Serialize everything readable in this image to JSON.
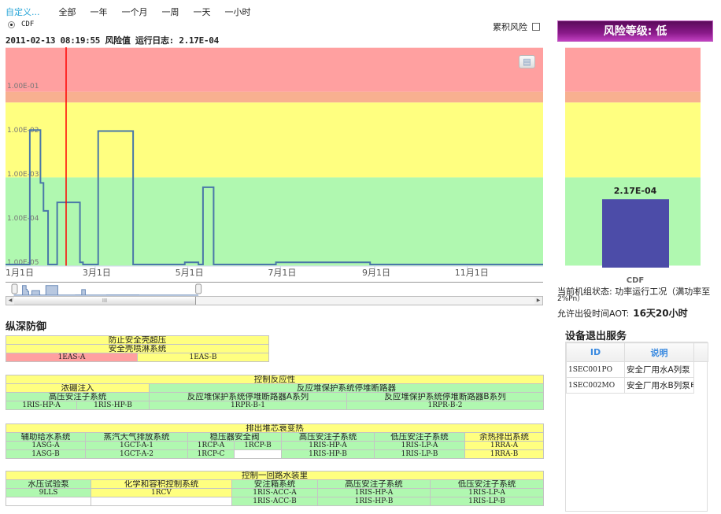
{
  "filters": {
    "custom": "自定义...",
    "ranges": [
      "全部",
      "一年",
      "一个月",
      "一周",
      "一天",
      "一小时"
    ]
  },
  "series_selector": {
    "option": "CDF",
    "selected": true
  },
  "cumulative": {
    "label": "累积风险",
    "checked": false
  },
  "status_line": "2011-02-13 08:19:55 风险值 运行日志: 2.17E-04",
  "print_icon": "printer-icon",
  "colors": {
    "red": "#ffa0a0",
    "salmon": "#f8b090",
    "yellow": "#ffff80",
    "green": "#b0f8b0",
    "line": "#4a78a8",
    "cursor": "#ff0000",
    "bar": "#4c4ca8"
  },
  "chart_data": [
    {
      "type": "line",
      "step": true,
      "yscale": "log",
      "ylim": [
        8e-06,
        0.7
      ],
      "yticks": [
        "1.00E-01",
        "1.00E-02",
        "1.00E-03",
        "1.00E-04",
        "1.00E-05"
      ],
      "ytick_values": [
        0.1,
        0.01,
        0.001,
        0.0001,
        1e-05
      ],
      "xlim": [
        "2011-01-01",
        "2011-12-21"
      ],
      "xticks": [
        "1月1日",
        "3月1日",
        "5月1日",
        "7月1日",
        "9月1日",
        "11月1日"
      ],
      "xtick_dates": [
        "2011-01-01",
        "2011-03-01",
        "2011-05-01",
        "2011-07-01",
        "2011-09-01",
        "2011-11-01"
      ],
      "bands": [
        {
          "level": "red",
          "from": 0.07,
          "to": 0.7
        },
        {
          "level": "salmon",
          "from": 0.04,
          "to": 0.07
        },
        {
          "level": "yellow",
          "from": 0.0008,
          "to": 0.04
        },
        {
          "level": "green",
          "from": 8e-06,
          "to": 0.0008
        }
      ],
      "cursor_date": "2011-02-13",
      "series": [
        {
          "points": [
            [
              "2011-01-01",
              8.5e-06
            ],
            [
              "2011-01-17",
              0.0095
            ],
            [
              "2011-01-24",
              0.0006
            ],
            [
              "2011-01-26",
              0.00014
            ],
            [
              "2011-01-29",
              8.5e-06
            ],
            [
              "2011-02-04",
              0.000217
            ],
            [
              "2011-02-19",
              9.5e-06
            ],
            [
              "2011-02-21",
              8.5e-06
            ],
            [
              "2011-03-03",
              0.009
            ],
            [
              "2011-03-26",
              8.5e-06
            ],
            [
              "2011-04-29",
              9.5e-06
            ],
            [
              "2011-05-08",
              8.5e-06
            ],
            [
              "2011-05-11",
              0.00048
            ],
            [
              "2011-05-18",
              8.5e-06
            ],
            [
              "2011-06-28",
              9.5e-06
            ],
            [
              "2011-08-29",
              8.5e-06
            ],
            [
              "2011-12-21",
              8.5e-06
            ]
          ]
        }
      ],
      "navigator": {
        "selection": [
          "2011-01-01",
          "2011-12-21"
        ]
      }
    },
    {
      "type": "bar",
      "categories": [
        "CDF"
      ],
      "values": [
        0.000217
      ],
      "data_labels": [
        "2.17E-04"
      ]
    }
  ],
  "right": {
    "risk_header": "风险等级: 低",
    "bar_category": "CDF",
    "bar_label": "2.17E-04",
    "state_line1": "当前机组状态: 功率运行工况（满功率至",
    "state_line2": "2%Pn）",
    "aot_label": "允许出役时间AOT:",
    "aot_value": "16天20小时",
    "equipment_title": "设备退出服务",
    "equipment_columns": [
      "ID",
      "说明"
    ],
    "equipment_rows": [
      {
        "id": "1SEC001PO",
        "desc": "安全厂用水A列泵"
      },
      {
        "id": "1SEC002MO",
        "desc": "安全厂用水B列泵电"
      }
    ]
  },
  "defense": {
    "title": "纵深防御",
    "tables": [
      {
        "rows": [
          [
            {
              "t": "防止安全壳超压",
              "cs": 2,
              "c": "y"
            }
          ],
          [
            {
              "t": "安全壳喷淋系统",
              "cs": 2,
              "c": "y"
            }
          ],
          [
            {
              "t": "1EAS-A",
              "c": "r",
              "code": true
            },
            {
              "t": "1EAS-B",
              "c": "y",
              "code": true
            }
          ]
        ]
      },
      {
        "rows": [
          [
            {
              "t": "控制反应性",
              "cs": 4,
              "c": "y"
            }
          ],
          [
            {
              "t": "浓硼注入",
              "cs": 2,
              "c": "y"
            },
            {
              "t": "反应堆保护系统停堆断路器",
              "cs": 2,
              "c": "g"
            }
          ],
          [
            {
              "t": "高压安注子系统",
              "cs": 2,
              "c": "g"
            },
            {
              "t": "反应堆保护系统停堆断路器A系列",
              "c": "g"
            },
            {
              "t": "反应堆保护系统停堆断路器B系列",
              "c": "g"
            }
          ],
          [
            {
              "t": "1RIS-HP-A",
              "c": "g",
              "code": true
            },
            {
              "t": "1RIS-HP-B",
              "c": "g",
              "code": true
            },
            {
              "t": "1RPR-B-1",
              "c": "g",
              "code": true
            },
            {
              "t": "1RPR-B-2",
              "c": "g",
              "code": true
            }
          ]
        ]
      },
      {
        "rows": [
          [
            {
              "t": "排出堆芯衰变热",
              "cs": 7,
              "c": "y"
            }
          ],
          [
            {
              "t": "辅助给水系统",
              "c": "g"
            },
            {
              "t": "蒸汽大气排放系统",
              "c": "g"
            },
            {
              "t": "稳压器安全阀",
              "cs": 2,
              "c": "g"
            },
            {
              "t": "高压安注子系统",
              "c": "g"
            },
            {
              "t": "低压安注子系统",
              "c": "g"
            },
            {
              "t": "余热排出系统",
              "c": "y"
            }
          ],
          [
            {
              "t": "1ASG-A",
              "c": "g",
              "code": true
            },
            {
              "t": "1GCT-A-1",
              "c": "g",
              "code": true
            },
            {
              "t": "1RCP-A",
              "c": "g",
              "code": true
            },
            {
              "t": "1RCP-B",
              "c": "g",
              "code": true
            },
            {
              "t": "1RIS-HP-A",
              "c": "g",
              "code": true
            },
            {
              "t": "1RIS-LP-A",
              "c": "g",
              "code": true
            },
            {
              "t": "1RRA-A",
              "c": "y",
              "code": true
            }
          ],
          [
            {
              "t": "1ASG-B",
              "c": "g",
              "code": true
            },
            {
              "t": "1GCT-A-2",
              "c": "g",
              "code": true
            },
            {
              "t": "1RCP-C",
              "c": "g",
              "code": true
            },
            {
              "t": "",
              "c": "w"
            },
            {
              "t": "1RIS-HP-B",
              "c": "g",
              "code": true
            },
            {
              "t": "1RIS-LP-B",
              "c": "g",
              "code": true
            },
            {
              "t": "1RRA-B",
              "c": "y",
              "code": true
            }
          ]
        ]
      },
      {
        "rows": [
          [
            {
              "t": "控制一回路水装里",
              "cs": 5,
              "c": "y"
            }
          ],
          [
            {
              "t": "水压试验泵",
              "c": "g"
            },
            {
              "t": "化学和容积控制系统",
              "c": "y"
            },
            {
              "t": "安注箱系统",
              "c": "g"
            },
            {
              "t": "高压安注子系统",
              "c": "g"
            },
            {
              "t": "低压安注子系统",
              "c": "g"
            }
          ],
          [
            {
              "t": "9LLS",
              "c": "g",
              "code": true
            },
            {
              "t": "1RCV",
              "c": "y",
              "code": true
            },
            {
              "t": "1RIS-ACC-A",
              "c": "g",
              "code": true
            },
            {
              "t": "1RIS-HP-A",
              "c": "g",
              "code": true
            },
            {
              "t": "1RIS-LP-A",
              "c": "g",
              "code": true
            }
          ],
          [
            {
              "t": "",
              "c": "w"
            },
            {
              "t": "",
              "c": "w"
            },
            {
              "t": "1RIS-ACC-B",
              "c": "g",
              "code": true
            },
            {
              "t": "1RIS-HP-B",
              "c": "g",
              "code": true
            },
            {
              "t": "1RIS-LP-B",
              "c": "g",
              "code": true
            }
          ]
        ]
      }
    ]
  }
}
